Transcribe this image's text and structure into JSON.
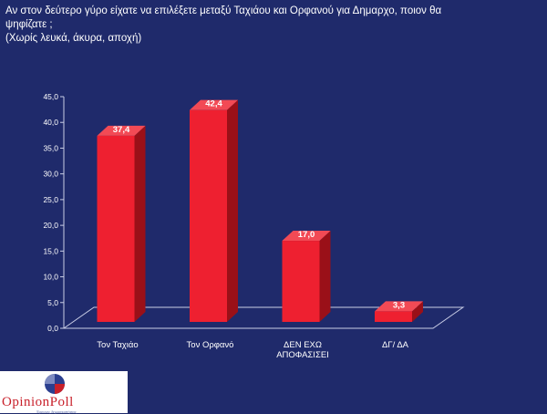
{
  "title": {
    "line1": "Αν στον δεύτερο γύρο είχατε να επιλέξετε μεταξύ Ταχιάου και Ορφανού για Δημαρχο, ποιον θα",
    "line2": "ψηφίζατε ;",
    "line3": "(Χωρίς λευκά, άκυρα, αποχή)"
  },
  "chart_data": {
    "type": "bar",
    "categories": [
      "Τον Ταχιάο",
      "Τον Ορφανό",
      "ΔΕΝ ΕΧΩ ΑΠΟΦΑΣΙΣΕΙ",
      "ΔΓ/ ΔΑ"
    ],
    "category_lines": [
      [
        "Τον Ταχιάο"
      ],
      [
        "Τον Ορφανό"
      ],
      [
        "ΔΕΝ ΕΧΩ",
        "ΑΠΟΦΑΣΙΣΕΙ"
      ],
      [
        "ΔΓ/ ΔΑ"
      ]
    ],
    "values": [
      37.4,
      42.4,
      17.0,
      3.3
    ],
    "value_labels": [
      "37,4",
      "42,4",
      "17,0",
      "3,3"
    ],
    "ylim": [
      0,
      45
    ],
    "yticks": [
      "0,0",
      "5,0",
      "10,0",
      "15,0",
      "20,0",
      "25,0",
      "30,0",
      "35,0",
      "40,0",
      "45,0"
    ],
    "bar_color": "#ee2030",
    "grid": false
  },
  "logo": {
    "text": "OpinionPoll",
    "tagline": "Έρευνες δημοσκοπήσεις"
  }
}
